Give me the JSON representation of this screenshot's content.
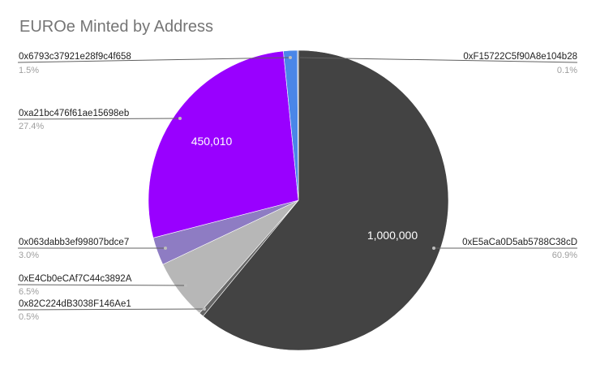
{
  "chart_data": {
    "type": "pie",
    "title": "EUROe Minted by Address",
    "start_angle_deg": 0,
    "direction": "clockwise",
    "slices": [
      {
        "label": "0xE5aCa0D5ab5788C38cD",
        "percent": 60.9,
        "value": 1000000,
        "value_label": "1,000,000",
        "color": "#434343"
      },
      {
        "label": "0x82C224dB3038F146Ae1",
        "percent": 0.5,
        "value": 8210,
        "value_label": "",
        "color": "#666666"
      },
      {
        "label": "0xE4Cb0eCAf7C44c3892A",
        "percent": 6.5,
        "value": 106732,
        "value_label": "",
        "color": "#b7b7b7"
      },
      {
        "label": "0x063dabb3ef99807bdce7",
        "percent": 3.0,
        "value": 49261,
        "value_label": "",
        "color": "#8e7cc3"
      },
      {
        "label": "0xa21bc476f61ae15698eb",
        "percent": 27.4,
        "value": 450010,
        "value_label": "450,010",
        "color": "#9900ff"
      },
      {
        "label": "0x6793c37921e28f9c4f658",
        "percent": 1.5,
        "value": 24630,
        "value_label": "",
        "color": "#4a86e8"
      },
      {
        "label": "0xF15722C5f90A8e104b28",
        "percent": 0.1,
        "value": 1642,
        "value_label": "",
        "color": "#999999"
      }
    ],
    "legend": "labeled callouts"
  },
  "labels": {
    "s0": {
      "name": "0xE5aCa0D5ab5788C38cD",
      "pct": "60.9%",
      "inside": "1,000,000"
    },
    "s1": {
      "name": "0x82C224dB3038F146Ae1",
      "pct": "0.5%"
    },
    "s2": {
      "name": "0xE4Cb0eCAf7C44c3892A",
      "pct": "6.5%"
    },
    "s3": {
      "name": "0x063dabb3ef99807bdce7",
      "pct": "3.0%"
    },
    "s4": {
      "name": "0xa21bc476f61ae15698eb",
      "pct": "27.4%",
      "inside": "450,010"
    },
    "s5": {
      "name": "0x6793c37921e28f9c4f658",
      "pct": "1.5%"
    },
    "s6": {
      "name": "0xF15722C5f90A8e104b28",
      "pct": "0.1%"
    }
  }
}
